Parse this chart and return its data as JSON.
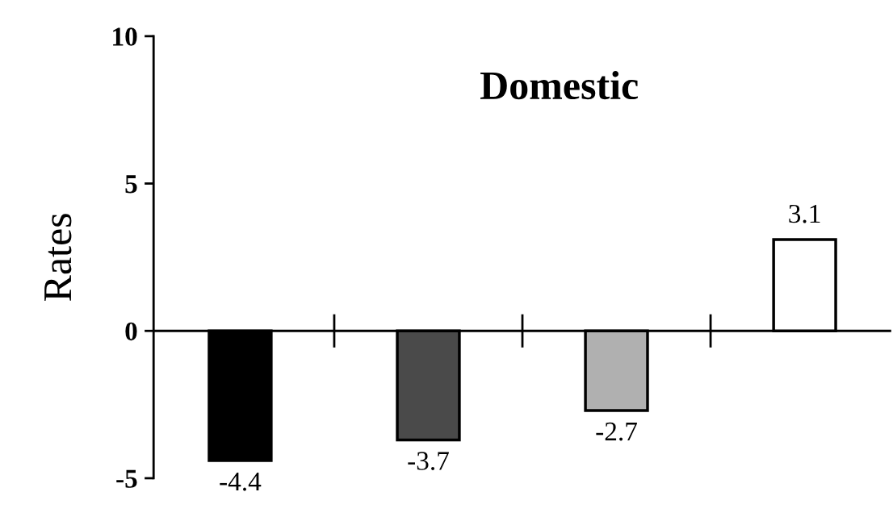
{
  "chart_data": {
    "type": "bar",
    "title": "Domestic",
    "ylabel": "Rates",
    "categories": [
      null,
      null,
      null,
      null
    ],
    "values": [
      -4.4,
      -3.7,
      -2.7,
      3.1
    ],
    "colors": [
      "#000000",
      "#4a4a4a",
      "#b0b0b0",
      "#ffffff"
    ],
    "ylim": [
      -5,
      10
    ],
    "yticks": [
      -5,
      0,
      5,
      10
    ],
    "ref_lines": [
      {
        "axis": "y",
        "value": 0,
        "color": "#000000"
      }
    ],
    "data_labels": true,
    "legend": false
  }
}
